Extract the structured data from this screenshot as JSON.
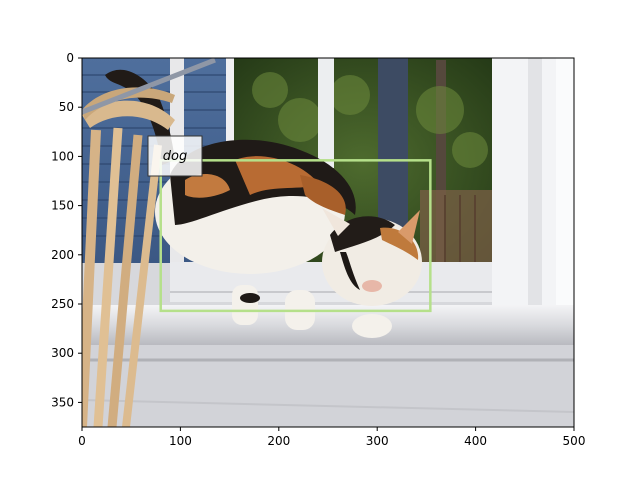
{
  "image": {
    "description_icon": "calico-cat-on-windowsill-photo",
    "width_units": 500,
    "height_units": 375
  },
  "axes": {
    "x_ticks": [
      0,
      100,
      200,
      300,
      400,
      500
    ],
    "y_ticks": [
      0,
      50,
      100,
      150,
      200,
      250,
      300,
      350
    ],
    "xlim": [
      0,
      500
    ],
    "ylim": [
      375,
      0
    ]
  },
  "annotation": {
    "label": "dog",
    "bbox_data": {
      "x1": 80,
      "y1": 104,
      "x2": 354,
      "y2": 257
    },
    "box_color": "#b5e08a"
  }
}
